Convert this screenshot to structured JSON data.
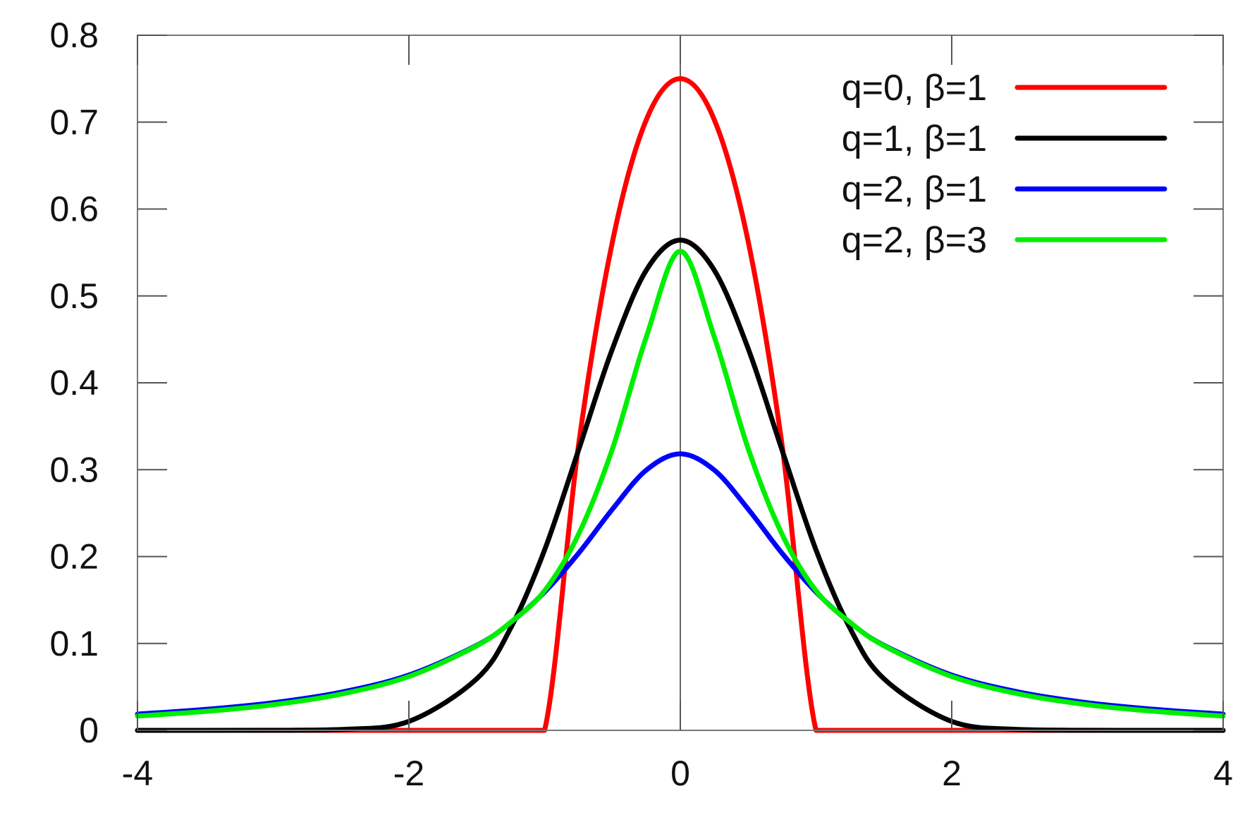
{
  "chart_data": {
    "type": "line",
    "title": "",
    "xlabel": "",
    "ylabel": "",
    "xlim": [
      -4,
      4
    ],
    "ylim": [
      0,
      0.8
    ],
    "x_ticks": [
      -4,
      -2,
      0,
      2,
      4
    ],
    "x_tick_labels": [
      "-4",
      "-2",
      "0",
      "2",
      "4"
    ],
    "y_ticks": [
      0,
      0.1,
      0.2,
      0.3,
      0.4,
      0.5,
      0.6,
      0.7,
      0.8
    ],
    "y_tick_labels": [
      "0",
      "0.1",
      "0.2",
      "0.3",
      "0.4",
      "0.5",
      "0.6",
      "0.7",
      "0.8"
    ],
    "grid": false,
    "zero_line": true,
    "legend_position": "top-right",
    "x": [
      -4.0,
      -3.5,
      -3.0,
      -2.5,
      -2.0,
      -1.5,
      -1.25,
      -1.0,
      -0.75,
      -0.5,
      -0.25,
      0.0,
      0.25,
      0.5,
      0.75,
      1.0,
      1.25,
      1.5,
      2.0,
      2.5,
      3.0,
      3.5,
      4.0
    ],
    "series": [
      {
        "name": "q=0, β=1",
        "color": "#ff0000",
        "values": [
          0,
          0,
          0,
          0,
          0,
          0,
          0,
          0,
          0.328,
          0.5625,
          0.703,
          0.75,
          0.703,
          0.5625,
          0.328,
          0,
          0,
          0,
          0,
          0,
          0,
          0,
          0
        ]
      },
      {
        "name": "q=1, β=1",
        "color": "#000000",
        "values": [
          0.0,
          0.0,
          0.0001,
          0.001,
          0.0103,
          0.0594,
          0.1177,
          0.2076,
          0.3224,
          0.4393,
          0.5297,
          0.5642,
          0.5297,
          0.4393,
          0.3224,
          0.2076,
          0.1177,
          0.0594,
          0.0103,
          0.001,
          0.0001,
          0.0,
          0.0
        ]
      },
      {
        "name": "q=2, β=1",
        "color": "#0000ff",
        "values": [
          0.0187,
          0.0241,
          0.0318,
          0.0439,
          0.0637,
          0.0979,
          0.1241,
          0.1592,
          0.2037,
          0.2546,
          0.2996,
          0.3183,
          0.2996,
          0.2546,
          0.2037,
          0.1592,
          0.1241,
          0.0979,
          0.0637,
          0.0439,
          0.0318,
          0.0241,
          0.0187
        ]
      },
      {
        "name": "q=2, β=3",
        "color": "#00ee00",
        "values": [
          0.0165,
          0.0218,
          0.0295,
          0.0417,
          0.062,
          0.0974,
          0.1245,
          0.1607,
          0.2256,
          0.3241,
          0.4531,
          0.5513,
          0.4531,
          0.3241,
          0.2256,
          0.1607,
          0.1245,
          0.0974,
          0.062,
          0.0417,
          0.0295,
          0.0218,
          0.0165
        ]
      }
    ]
  }
}
